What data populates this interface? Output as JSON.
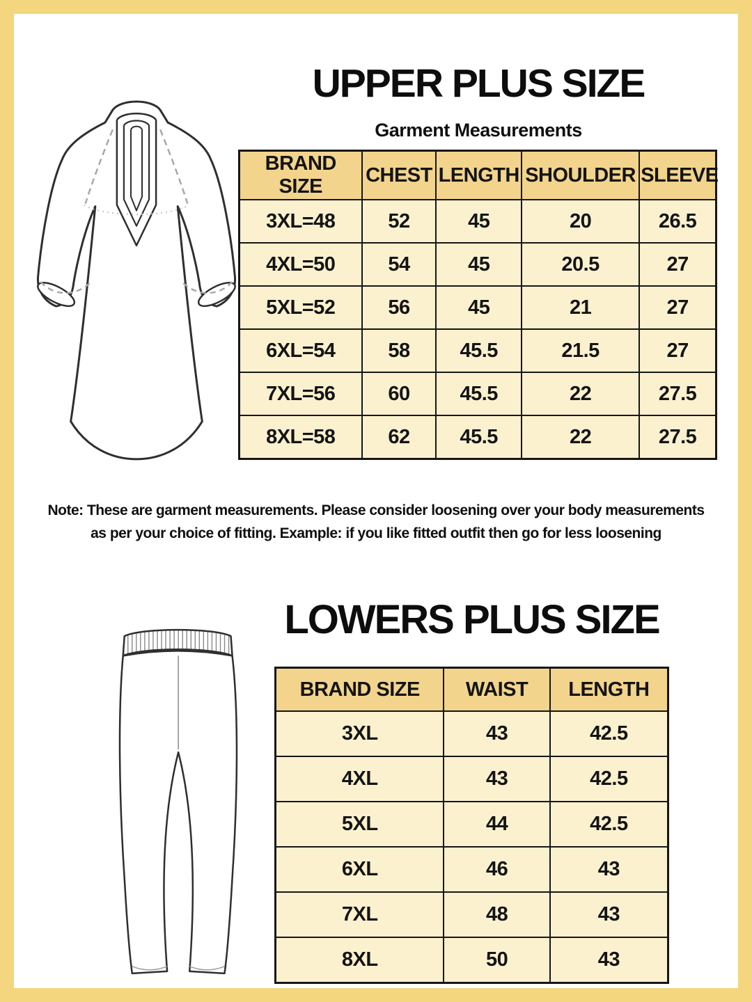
{
  "colors": {
    "frame": "#f3d67e",
    "header_cell": "#f2d48c",
    "body_cell": "#fbf1cf",
    "table_border": "#161616",
    "text": "#141414"
  },
  "illustrations": {
    "upper": "kurta-line-art",
    "lower": "pants-line-art"
  },
  "upper": {
    "title": "UPPER PLUS SIZE",
    "subtitle": "Garment Measurements",
    "table": {
      "headers": [
        "BRAND SIZE",
        "CHEST",
        "LENGTH",
        "SHOULDER",
        "SLEEVE"
      ],
      "rows": [
        [
          "3XL=48",
          "52",
          "45",
          "20",
          "26.5"
        ],
        [
          "4XL=50",
          "54",
          "45",
          "20.5",
          "27"
        ],
        [
          "5XL=52",
          "56",
          "45",
          "21",
          "27"
        ],
        [
          "6XL=54",
          "58",
          "45.5",
          "21.5",
          "27"
        ],
        [
          "7XL=56",
          "60",
          "45.5",
          "22",
          "27.5"
        ],
        [
          "8XL=58",
          "62",
          "45.5",
          "22",
          "27.5"
        ]
      ]
    }
  },
  "note": {
    "line1": "Note: These are garment measurements. Please consider loosening over your body measurements",
    "line2": "as per your choice of fitting. Example: if you like fitted outfit then go for less loosening"
  },
  "lower": {
    "title": "LOWERS PLUS SIZE",
    "table": {
      "headers": [
        "BRAND SIZE",
        "WAIST",
        "LENGTH"
      ],
      "rows": [
        [
          "3XL",
          "43",
          "42.5"
        ],
        [
          "4XL",
          "43",
          "42.5"
        ],
        [
          "5XL",
          "44",
          "42.5"
        ],
        [
          "6XL",
          "46",
          "43"
        ],
        [
          "7XL",
          "48",
          "43"
        ],
        [
          "8XL",
          "50",
          "43"
        ]
      ]
    }
  }
}
